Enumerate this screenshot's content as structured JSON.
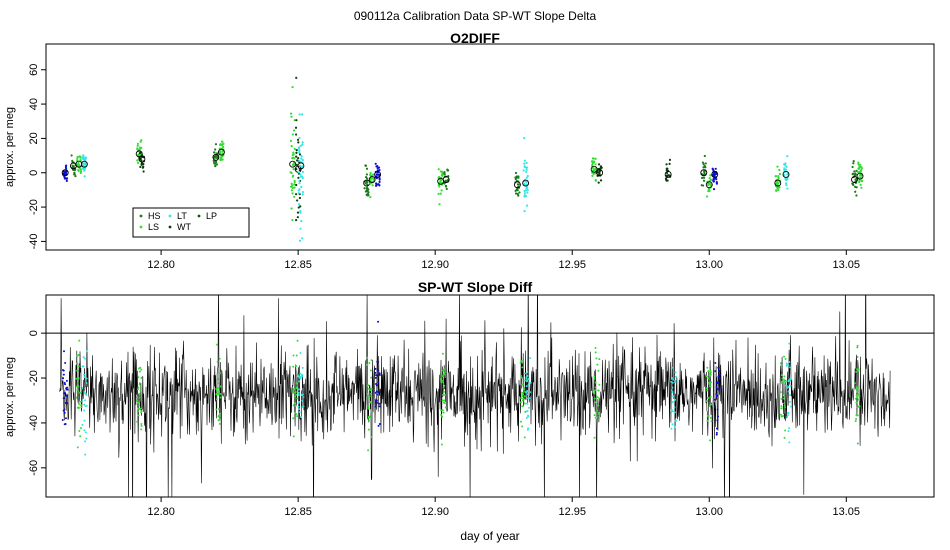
{
  "page_title": "090112a   Calibration Data SP-WT Slope Delta",
  "chart_data": [
    {
      "type": "scatter",
      "title": "O2DIFF",
      "xlabel": "",
      "ylabel": "approx. per meg",
      "xlim": [
        12.758,
        13.082
      ],
      "ylim": [
        -45,
        75
      ],
      "x_ticks": [
        12.8,
        12.85,
        12.9,
        12.95,
        13.0,
        13.05
      ],
      "x_tick_labels": [
        "12.80",
        "12.85",
        "12.90",
        "12.95",
        "13.00",
        "13.05"
      ],
      "y_ticks": [
        -40,
        -20,
        0,
        20,
        40,
        60
      ],
      "y_tick_labels": [
        "-40",
        "-20",
        "0",
        "20",
        "40",
        "60"
      ],
      "legend": {
        "position": "bottom-left",
        "entries": [
          {
            "label": "HS",
            "color": "#1a7a1a"
          },
          {
            "label": "LS",
            "color": "#33dd33"
          },
          {
            "label": "LT",
            "color": "#33e6e6"
          },
          {
            "label": "WT",
            "color": "#0a3d0a"
          },
          {
            "label": "LP",
            "color": "#145214"
          }
        ]
      },
      "series_colors": {
        "HS": "#1a7a1a",
        "LS": "#33dd33",
        "LT": "#33e6e6",
        "WT": "#0a3d0a",
        "LP": "#145214",
        "SP": "#1010cc"
      },
      "groups": [
        {
          "x": 12.765,
          "series": "SP",
          "mean": 0,
          "spread": 3,
          "n": 30
        },
        {
          "x": 12.768,
          "series": "HS",
          "mean": 4,
          "spread": 3,
          "n": 20
        },
        {
          "x": 12.77,
          "series": "LS",
          "mean": 5,
          "spread": 3,
          "n": 25
        },
        {
          "x": 12.772,
          "series": "LT",
          "mean": 5,
          "spread": 4,
          "n": 25
        },
        {
          "x": 12.792,
          "series": "LS",
          "mean": 11,
          "spread": 3,
          "n": 30
        },
        {
          "x": 12.793,
          "series": "WT",
          "mean": 8,
          "spread": 3,
          "n": 20
        },
        {
          "x": 12.82,
          "series": "HS",
          "mean": 9,
          "spread": 3,
          "n": 25
        },
        {
          "x": 12.822,
          "series": "LS",
          "mean": 12,
          "spread": 4,
          "n": 30
        },
        {
          "x": 12.848,
          "series": "LS",
          "mean": 5,
          "spread": 15,
          "n": 40
        },
        {
          "x": 12.85,
          "series": "WT",
          "mean": 2,
          "spread": 14,
          "n": 30
        },
        {
          "x": 12.851,
          "series": "LT",
          "mean": 4,
          "spread": 18,
          "n": 40
        },
        {
          "x": 12.875,
          "series": "HS",
          "mean": -6,
          "spread": 5,
          "n": 25
        },
        {
          "x": 12.877,
          "series": "LS",
          "mean": -4,
          "spread": 3,
          "n": 20
        },
        {
          "x": 12.879,
          "series": "SP",
          "mean": -1,
          "spread": 3,
          "n": 30
        },
        {
          "x": 12.902,
          "series": "LS",
          "mean": -5,
          "spread": 4,
          "n": 30
        },
        {
          "x": 12.904,
          "series": "HS",
          "mean": -4,
          "spread": 3,
          "n": 20
        },
        {
          "x": 12.93,
          "series": "HS",
          "mean": -7,
          "spread": 4,
          "n": 25
        },
        {
          "x": 12.933,
          "series": "LT",
          "mean": -6,
          "spread": 8,
          "n": 35
        },
        {
          "x": 12.958,
          "series": "LS",
          "mean": 2,
          "spread": 4,
          "n": 30
        },
        {
          "x": 12.96,
          "series": "WT",
          "mean": 0,
          "spread": 3,
          "n": 20
        },
        {
          "x": 12.985,
          "series": "WT",
          "mean": -1,
          "spread": 4,
          "n": 20
        },
        {
          "x": 12.998,
          "series": "HS",
          "mean": 0,
          "spread": 4,
          "n": 20
        },
        {
          "x": 13.0,
          "series": "LS",
          "mean": -7,
          "spread": 3,
          "n": 20
        },
        {
          "x": 13.002,
          "series": "SP",
          "mean": -1,
          "spread": 3,
          "n": 30
        },
        {
          "x": 13.025,
          "series": "LS",
          "mean": -6,
          "spread": 4,
          "n": 30
        },
        {
          "x": 13.028,
          "series": "LT",
          "mean": -1,
          "spread": 4,
          "n": 25
        },
        {
          "x": 13.053,
          "series": "HS",
          "mean": -4,
          "spread": 4,
          "n": 25
        },
        {
          "x": 13.055,
          "series": "LS",
          "mean": -2,
          "spread": 4,
          "n": 30
        }
      ]
    },
    {
      "type": "line",
      "title": "SP-WT Slope Diff",
      "xlabel": "day of year",
      "ylabel": "approx. per meg",
      "xlim": [
        12.758,
        13.082
      ],
      "ylim": [
        -73,
        17
      ],
      "reference_line": 0,
      "x_ticks": [
        12.8,
        12.85,
        12.9,
        12.95,
        13.0,
        13.05
      ],
      "x_tick_labels": [
        "12.80",
        "12.85",
        "12.90",
        "12.95",
        "13.00",
        "13.05"
      ],
      "y_ticks": [
        -60,
        -40,
        -20,
        0
      ],
      "y_tick_labels": [
        "-60",
        "-40",
        "-20",
        "0"
      ],
      "line": {
        "x_start": 12.763,
        "x_end": 13.066,
        "mean": -27,
        "noise": 10,
        "color": "#000000"
      },
      "overlay_clusters": [
        {
          "x": 12.765,
          "color": "#1010cc"
        },
        {
          "x": 12.77,
          "color": "#33dd33"
        },
        {
          "x": 12.772,
          "color": "#33e6e6"
        },
        {
          "x": 12.792,
          "color": "#33dd33"
        },
        {
          "x": 12.821,
          "color": "#33dd33"
        },
        {
          "x": 12.849,
          "color": "#33dd33"
        },
        {
          "x": 12.851,
          "color": "#33e6e6"
        },
        {
          "x": 12.876,
          "color": "#33dd33"
        },
        {
          "x": 12.879,
          "color": "#1010cc"
        },
        {
          "x": 12.903,
          "color": "#33dd33"
        },
        {
          "x": 12.932,
          "color": "#33dd33"
        },
        {
          "x": 12.934,
          "color": "#33e6e6"
        },
        {
          "x": 12.959,
          "color": "#33dd33"
        },
        {
          "x": 12.987,
          "color": "#33e6e6"
        },
        {
          "x": 13.0,
          "color": "#33dd33"
        },
        {
          "x": 13.003,
          "color": "#1010cc"
        },
        {
          "x": 13.027,
          "color": "#33dd33"
        },
        {
          "x": 13.029,
          "color": "#33e6e6"
        },
        {
          "x": 13.054,
          "color": "#33dd33"
        }
      ]
    }
  ]
}
